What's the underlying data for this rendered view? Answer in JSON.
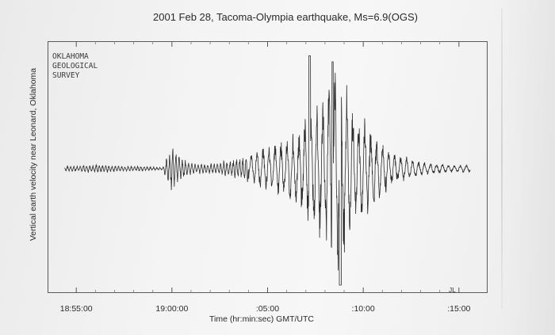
{
  "chart_data": {
    "type": "line",
    "title": "2001 Feb 28, Tacoma-Olympia earthquake, Ms=6.9(OGS)",
    "xlabel": "Time (hr:min:sec) GMT/UTC",
    "ylabel": "Vertical earth velocity near Leonard, Oklahoma",
    "x_ticks": [
      "18:55:00",
      "19:00:00",
      ":05:00",
      ":10:00",
      ":15:00"
    ],
    "x_tick_minutes": [
      0,
      5,
      10,
      15,
      20
    ],
    "xlim_minutes": [
      -1.5,
      21.5
    ],
    "ylim": [
      -1,
      1
    ],
    "annotations": {
      "agency": [
        "OKLAHOMA",
        "GEOLOGICAL",
        "SURVEY"
      ],
      "initials": "JL"
    },
    "series": [
      {
        "x": [
          -0.5,
          0.5,
          1.5,
          2.5,
          3.5,
          4.5,
          5.0,
          5.5,
          6.0,
          6.5,
          7.0,
          7.5,
          8.0,
          8.5,
          9.0,
          9.5,
          10.0,
          10.5,
          11.0,
          11.5,
          12.0,
          12.5,
          13.0,
          13.5,
          14.0,
          14.5,
          15.0,
          15.5,
          16.0,
          16.5,
          17.0,
          17.5,
          18.0,
          18.5,
          19.0,
          19.5,
          20.0
        ],
        "y": [
          0.02,
          0.03,
          0.03,
          0.02,
          0.02,
          0.01,
          0.18,
          0.09,
          0.05,
          0.04,
          0.04,
          0.05,
          0.07,
          0.08,
          0.12,
          0.15,
          0.18,
          0.22,
          0.26,
          0.32,
          0.42,
          0.55,
          0.68,
          0.85,
          0.75,
          0.55,
          0.4,
          0.3,
          0.22,
          0.15,
          0.11,
          0.08,
          0.06,
          0.05,
          0.04,
          0.03,
          0.03
        ]
      }
    ]
  }
}
